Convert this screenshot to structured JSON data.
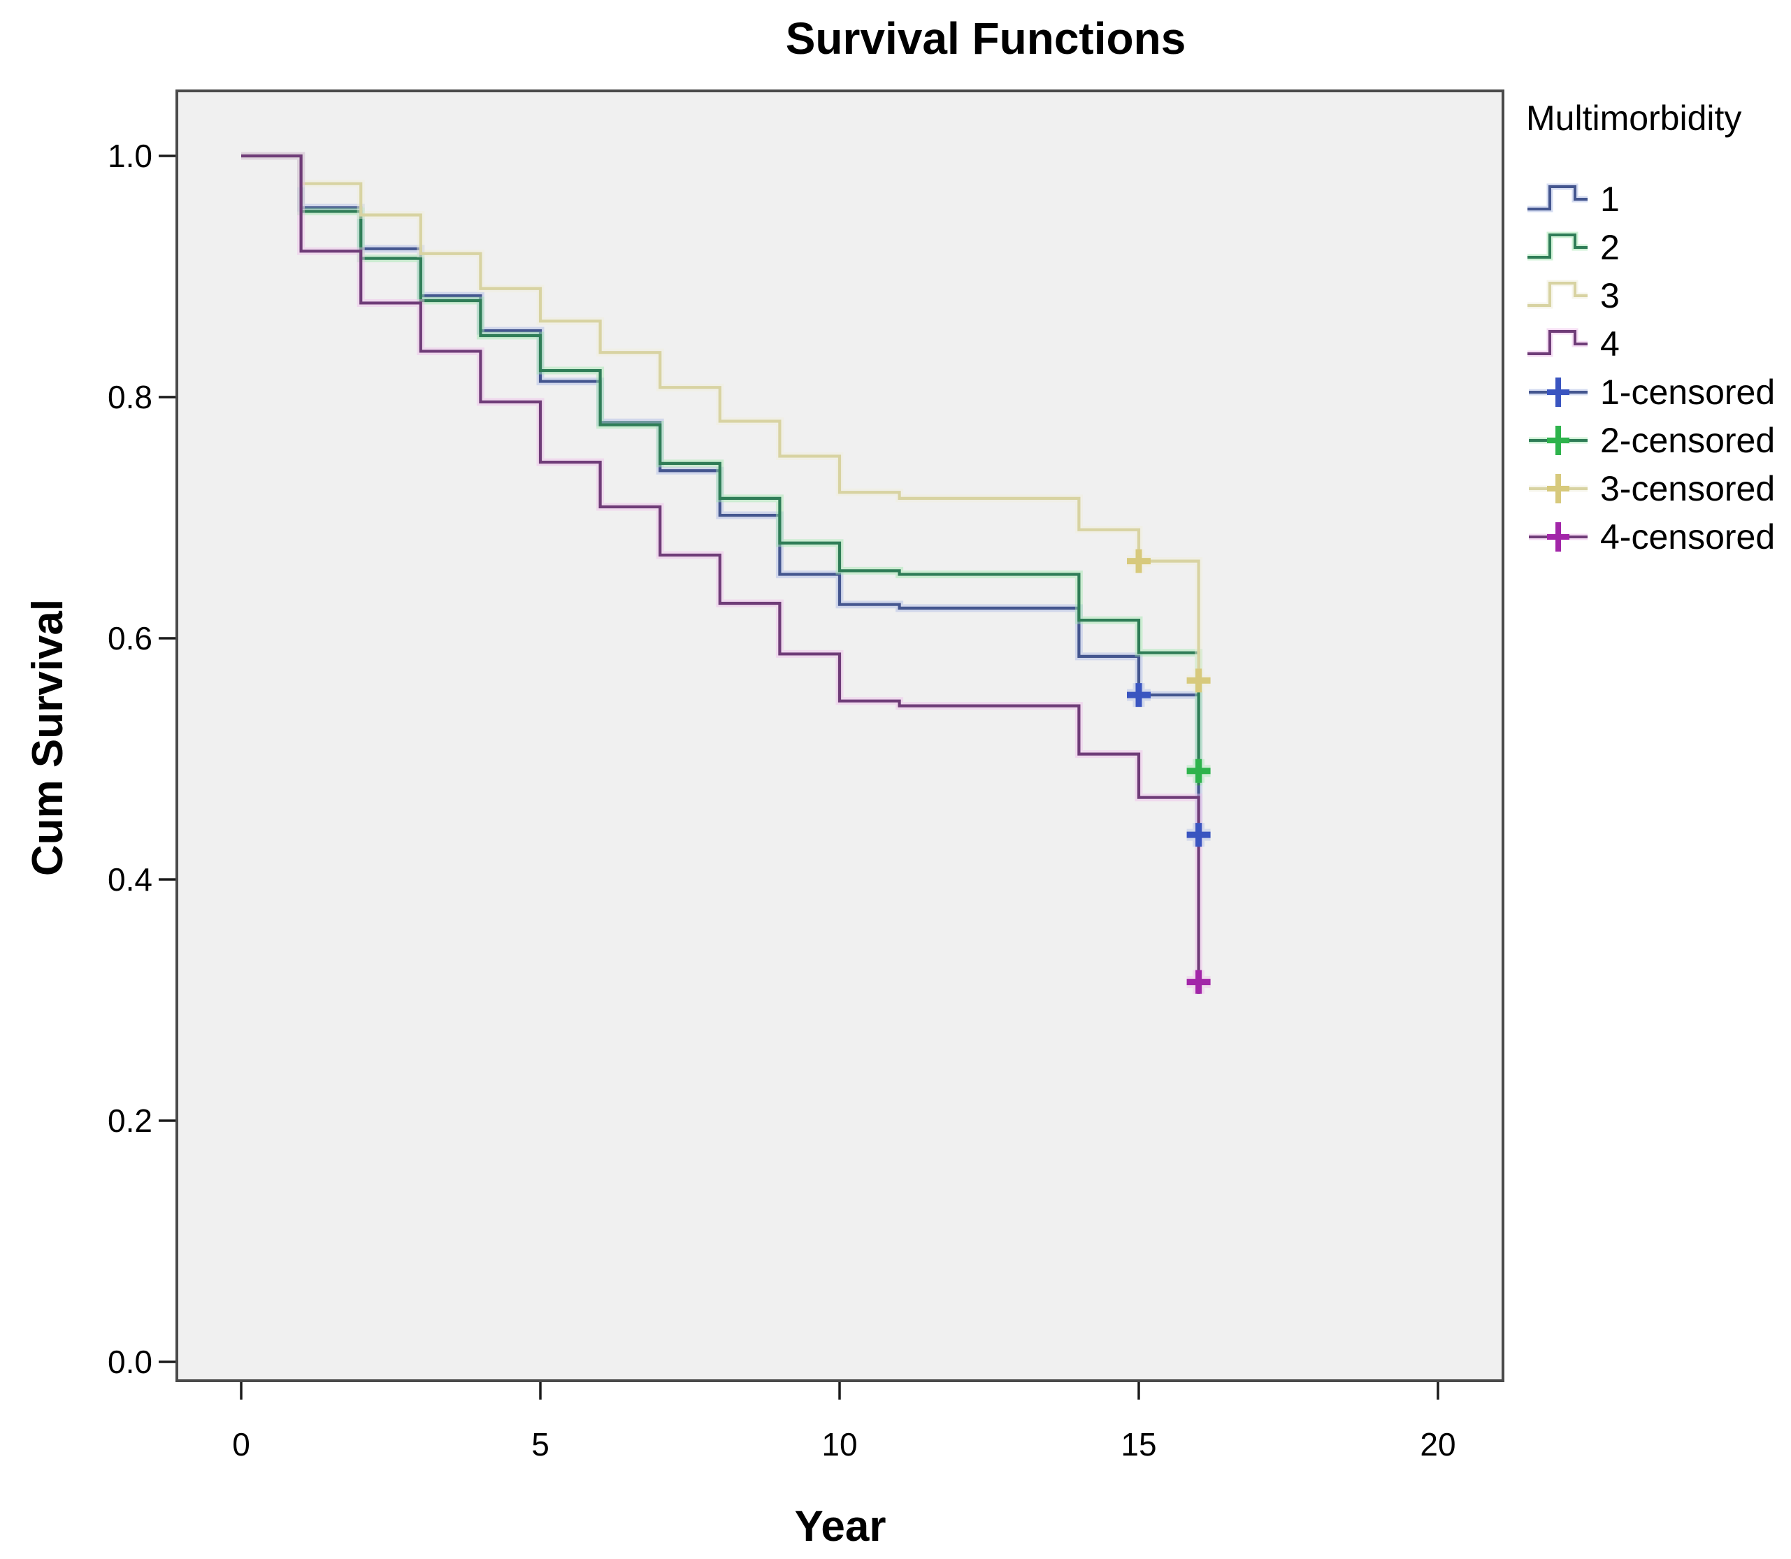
{
  "figure": {
    "title": "Survival Functions"
  },
  "axes": {
    "x_label": "Year",
    "y_label": "Cum Survival"
  },
  "legend": {
    "title": "Multimorbidity",
    "position": "right",
    "items": [
      {
        "label": "1",
        "type": "step",
        "series": 0
      },
      {
        "label": "2",
        "type": "step",
        "series": 1
      },
      {
        "label": "3",
        "type": "step",
        "series": 2
      },
      {
        "label": "4",
        "type": "step",
        "series": 3
      },
      {
        "label": "1-censored",
        "type": "censor",
        "series": 0
      },
      {
        "label": "2-censored",
        "type": "censor",
        "series": 1
      },
      {
        "label": "3-censored",
        "type": "censor",
        "series": 2
      },
      {
        "label": "4-censored",
        "type": "censor",
        "series": 3
      }
    ]
  },
  "chart_data": {
    "type": "line",
    "subtype": "kaplan-meier-step",
    "title": "Survival Functions",
    "xlabel": "Year",
    "ylabel": "Cum Survival",
    "xlim": [
      -1.07,
      21.1
    ],
    "ylim": [
      -0.016,
      1.054
    ],
    "grid": false,
    "plot_bg": "#F0F0F0",
    "border_color": "#4A4A4A",
    "tick_color": "#1A1A1A",
    "x_ticks": [
      {
        "label": "0",
        "value": 0
      },
      {
        "label": "5",
        "value": 5
      },
      {
        "label": "10",
        "value": 10
      },
      {
        "label": "15",
        "value": 15
      },
      {
        "label": "20",
        "value": 20
      }
    ],
    "y_ticks": [
      {
        "label": "0.0",
        "value": 0.0
      },
      {
        "label": "0.2",
        "value": 0.2
      },
      {
        "label": "0.4",
        "value": 0.4
      },
      {
        "label": "0.6",
        "value": 0.6
      },
      {
        "label": "0.8",
        "value": 0.8
      },
      {
        "label": "1.0",
        "value": 1.0
      }
    ],
    "series": [
      {
        "name": "1",
        "color": "#44568F",
        "halo": "#ABB9E4",
        "censor_color": "#3A55C0",
        "steps": [
          [
            0,
            1.0
          ],
          [
            1,
            0.957
          ],
          [
            2,
            0.923
          ],
          [
            3,
            0.884
          ],
          [
            4,
            0.855
          ],
          [
            5,
            0.813
          ],
          [
            6,
            0.779
          ],
          [
            7,
            0.739
          ],
          [
            8,
            0.702
          ],
          [
            9,
            0.653
          ],
          [
            10,
            0.628
          ],
          [
            11,
            0.625
          ],
          [
            14,
            0.585
          ],
          [
            15,
            0.553
          ],
          [
            16,
            0.428
          ]
        ],
        "censored": [
          [
            15,
            0.553
          ],
          [
            16,
            0.437
          ]
        ]
      },
      {
        "name": "2",
        "color": "#2F7D57",
        "halo": "#9FE6AE",
        "censor_color": "#2EB34C",
        "steps": [
          [
            0,
            1.0
          ],
          [
            1,
            0.954
          ],
          [
            2,
            0.915
          ],
          [
            3,
            0.88
          ],
          [
            4,
            0.851
          ],
          [
            5,
            0.822
          ],
          [
            6,
            0.777
          ],
          [
            7,
            0.745
          ],
          [
            8,
            0.716
          ],
          [
            9,
            0.679
          ],
          [
            10,
            0.656
          ],
          [
            11,
            0.653
          ],
          [
            14,
            0.615
          ],
          [
            15,
            0.588
          ],
          [
            16,
            0.478
          ]
        ],
        "censored": [
          [
            16,
            0.49
          ]
        ]
      },
      {
        "name": "3",
        "color": "#D8D3A2",
        "halo": "#F0EDDA",
        "censor_color": "#D7C97C",
        "steps": [
          [
            0,
            1.0
          ],
          [
            1,
            0.977
          ],
          [
            2,
            0.951
          ],
          [
            3,
            0.919
          ],
          [
            4,
            0.89
          ],
          [
            5,
            0.863
          ],
          [
            6,
            0.837
          ],
          [
            7,
            0.808
          ],
          [
            8,
            0.78
          ],
          [
            9,
            0.751
          ],
          [
            10,
            0.721
          ],
          [
            11,
            0.716
          ],
          [
            14,
            0.69
          ],
          [
            15,
            0.664
          ],
          [
            16,
            0.565
          ]
        ],
        "censored": [
          [
            15,
            0.664
          ],
          [
            16,
            0.565
          ]
        ]
      },
      {
        "name": "4",
        "color": "#6F3C78",
        "halo": "#EDBCE9",
        "censor_color": "#A226A8",
        "steps": [
          [
            0,
            1.0
          ],
          [
            1,
            0.921
          ],
          [
            2,
            0.878
          ],
          [
            3,
            0.838
          ],
          [
            4,
            0.796
          ],
          [
            5,
            0.746
          ],
          [
            6,
            0.709
          ],
          [
            7,
            0.669
          ],
          [
            8,
            0.629
          ],
          [
            9,
            0.587
          ],
          [
            10,
            0.548
          ],
          [
            11,
            0.544
          ],
          [
            14,
            0.504
          ],
          [
            15,
            0.468
          ],
          [
            16,
            0.305
          ]
        ],
        "censored": [
          [
            16,
            0.315
          ]
        ]
      }
    ]
  }
}
